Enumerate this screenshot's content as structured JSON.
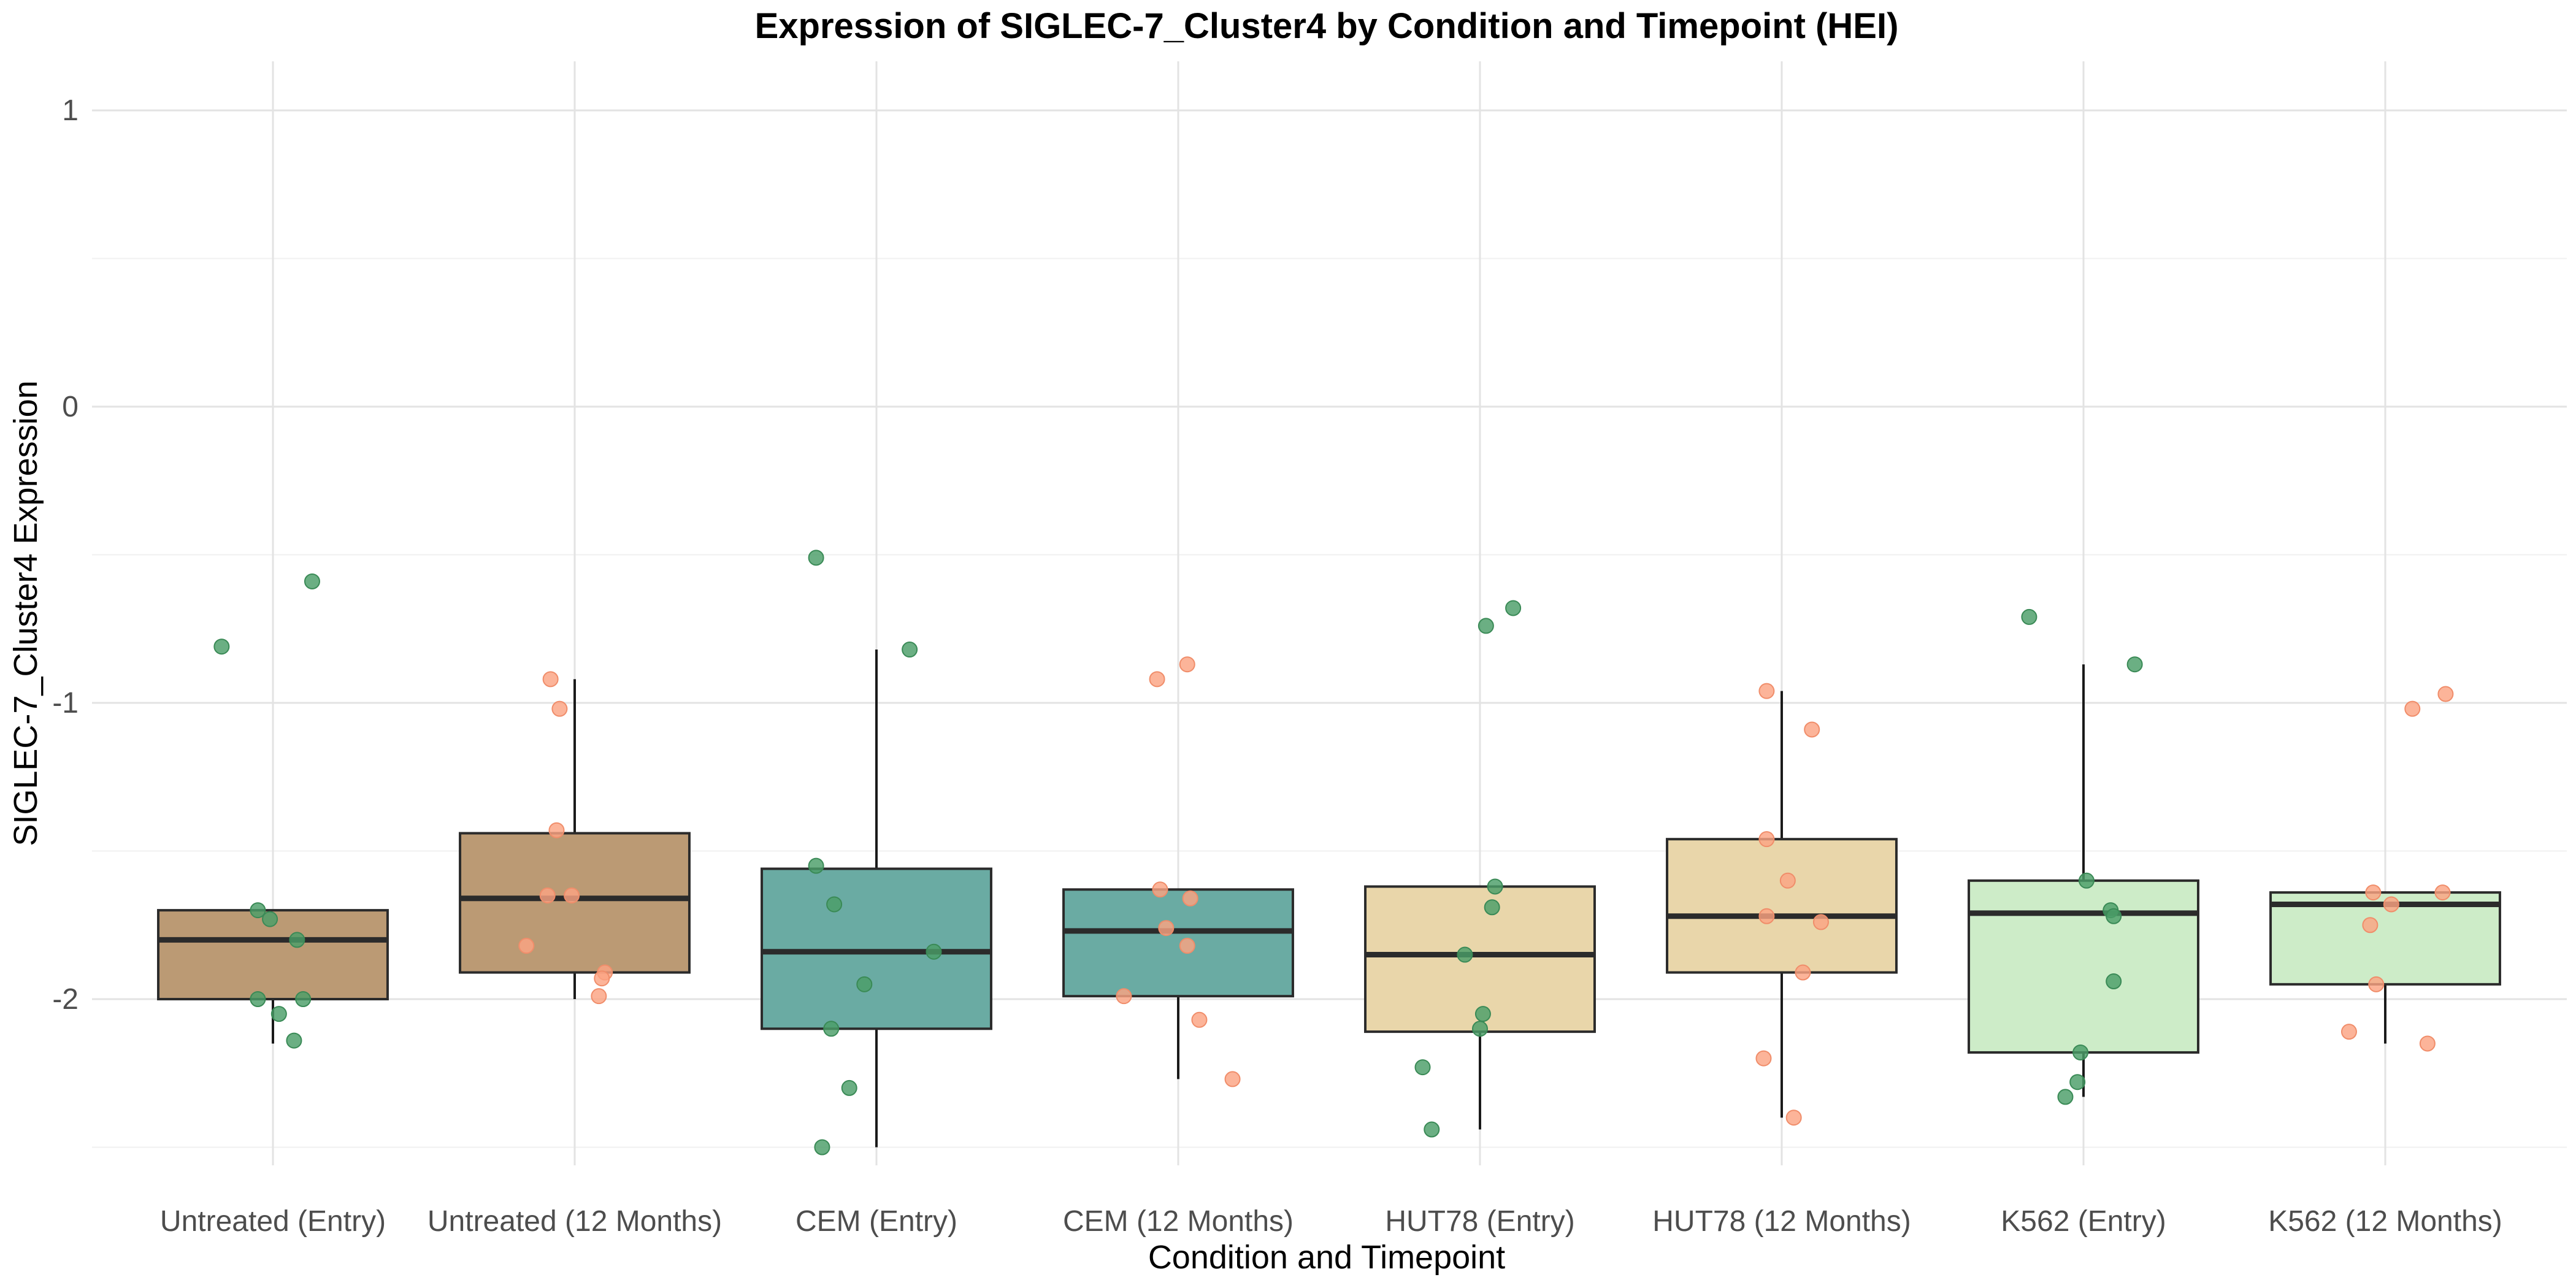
{
  "chart_data": {
    "type": "boxplot",
    "title": "Expression of SIGLEC-7_Cluster4 by Condition and Timepoint (HEI)",
    "xlabel": "Condition and Timepoint",
    "ylabel": "SIGLEC-7_Cluster4 Expression",
    "ylim": [
      -2.6,
      1.15
    ],
    "yticks": [
      1,
      0,
      -1,
      -2
    ],
    "ytick_labels": [
      "1",
      "0",
      "-1",
      "-2"
    ],
    "grid": true,
    "categories": [
      "Untreated (Entry)",
      "Untreated (12 Months)",
      "CEM (Entry)",
      "CEM (12 Months)",
      "HUT78 (Entry)",
      "HUT78 (12 Months)",
      "K562 (Entry)",
      "K562 (12 Months)"
    ],
    "box_colors": [
      "#bb9a74",
      "#bb9a74",
      "#6aaba3",
      "#6aaba3",
      "#e9d6aa",
      "#e9d6aa",
      "#cdecc8",
      "#cdecc8"
    ],
    "point_colors": {
      "Entry": "#4a9e68",
      "12 Months": "#fba383"
    },
    "boxes": [
      {
        "q1": -2.0,
        "median": -1.8,
        "q3": -1.7,
        "whisker_low": -2.15,
        "whisker_high": -1.7
      },
      {
        "q1": -1.91,
        "median": -1.66,
        "q3": -1.44,
        "whisker_low": -2.0,
        "whisker_high": -0.92
      },
      {
        "q1": -2.1,
        "median": -1.84,
        "q3": -1.56,
        "whisker_low": -2.5,
        "whisker_high": -0.82
      },
      {
        "q1": -1.99,
        "median": -1.77,
        "q3": -1.63,
        "whisker_low": -2.27,
        "whisker_high": -1.63
      },
      {
        "q1": -2.11,
        "median": -1.85,
        "q3": -1.62,
        "whisker_low": -2.44,
        "whisker_high": -1.62
      },
      {
        "q1": -1.91,
        "median": -1.72,
        "q3": -1.46,
        "whisker_low": -2.4,
        "whisker_high": -0.96
      },
      {
        "q1": -2.18,
        "median": -1.71,
        "q3": -1.6,
        "whisker_low": -2.33,
        "whisker_high": -0.87
      },
      {
        "q1": -1.95,
        "median": -1.68,
        "q3": -1.64,
        "whisker_low": -2.15,
        "whisker_high": -1.64
      }
    ],
    "points": [
      [
        {
          "dx": -0.17,
          "y": -0.81
        },
        {
          "dx": 0.13,
          "y": -0.59
        },
        {
          "dx": -0.05,
          "y": -1.7
        },
        {
          "dx": -0.01,
          "y": -1.73
        },
        {
          "dx": 0.08,
          "y": -1.8
        },
        {
          "dx": -0.05,
          "y": -2.0
        },
        {
          "dx": 0.02,
          "y": -2.05
        },
        {
          "dx": 0.1,
          "y": -2.0
        },
        {
          "dx": 0.07,
          "y": -2.14
        }
      ],
      [
        {
          "dx": -0.08,
          "y": -0.92
        },
        {
          "dx": -0.05,
          "y": -1.02
        },
        {
          "dx": -0.06,
          "y": -1.43
        },
        {
          "dx": -0.09,
          "y": -1.65
        },
        {
          "dx": -0.01,
          "y": -1.65
        },
        {
          "dx": -0.16,
          "y": -1.82
        },
        {
          "dx": 0.1,
          "y": -1.91
        },
        {
          "dx": 0.09,
          "y": -1.93
        },
        {
          "dx": 0.08,
          "y": -1.99
        }
      ],
      [
        {
          "dx": -0.2,
          "y": -0.51
        },
        {
          "dx": 0.11,
          "y": -0.82
        },
        {
          "dx": -0.2,
          "y": -1.55
        },
        {
          "dx": -0.14,
          "y": -1.68
        },
        {
          "dx": 0.19,
          "y": -1.84
        },
        {
          "dx": -0.04,
          "y": -1.95
        },
        {
          "dx": -0.15,
          "y": -2.1
        },
        {
          "dx": -0.09,
          "y": -2.3
        },
        {
          "dx": -0.18,
          "y": -2.5
        }
      ],
      [
        {
          "dx": -0.07,
          "y": -0.92
        },
        {
          "dx": 0.03,
          "y": -0.87
        },
        {
          "dx": -0.06,
          "y": -1.63
        },
        {
          "dx": 0.04,
          "y": -1.66
        },
        {
          "dx": -0.04,
          "y": -1.76
        },
        {
          "dx": 0.03,
          "y": -1.82
        },
        {
          "dx": -0.18,
          "y": -1.99
        },
        {
          "dx": 0.07,
          "y": -2.07
        },
        {
          "dx": 0.18,
          "y": -2.27
        }
      ],
      [
        {
          "dx": 0.02,
          "y": -0.74
        },
        {
          "dx": 0.11,
          "y": -0.68
        },
        {
          "dx": 0.05,
          "y": -1.62
        },
        {
          "dx": 0.04,
          "y": -1.69
        },
        {
          "dx": -0.05,
          "y": -1.85
        },
        {
          "dx": 0.01,
          "y": -2.05
        },
        {
          "dx": 0.0,
          "y": -2.1
        },
        {
          "dx": -0.19,
          "y": -2.23
        },
        {
          "dx": -0.16,
          "y": -2.44
        }
      ],
      [
        {
          "dx": -0.05,
          "y": -0.96
        },
        {
          "dx": 0.1,
          "y": -1.09
        },
        {
          "dx": -0.05,
          "y": -1.46
        },
        {
          "dx": 0.02,
          "y": -1.6
        },
        {
          "dx": -0.05,
          "y": -1.72
        },
        {
          "dx": 0.13,
          "y": -1.74
        },
        {
          "dx": 0.07,
          "y": -1.91
        },
        {
          "dx": -0.06,
          "y": -2.2
        },
        {
          "dx": 0.04,
          "y": -2.4
        }
      ],
      [
        {
          "dx": -0.18,
          "y": -0.71
        },
        {
          "dx": 0.17,
          "y": -0.87
        },
        {
          "dx": 0.01,
          "y": -1.6
        },
        {
          "dx": 0.09,
          "y": -1.7
        },
        {
          "dx": 0.1,
          "y": -1.72
        },
        {
          "dx": 0.1,
          "y": -1.94
        },
        {
          "dx": -0.01,
          "y": -2.18
        },
        {
          "dx": -0.02,
          "y": -2.28
        },
        {
          "dx": -0.06,
          "y": -2.33
        }
      ],
      [
        {
          "dx": 0.09,
          "y": -1.02
        },
        {
          "dx": 0.2,
          "y": -0.97
        },
        {
          "dx": -0.04,
          "y": -1.64
        },
        {
          "dx": -0.05,
          "y": -1.75
        },
        {
          "dx": 0.02,
          "y": -1.68
        },
        {
          "dx": 0.19,
          "y": -1.64
        },
        {
          "dx": -0.03,
          "y": -1.95
        },
        {
          "dx": -0.12,
          "y": -2.11
        },
        {
          "dx": 0.14,
          "y": -2.15
        }
      ]
    ]
  }
}
